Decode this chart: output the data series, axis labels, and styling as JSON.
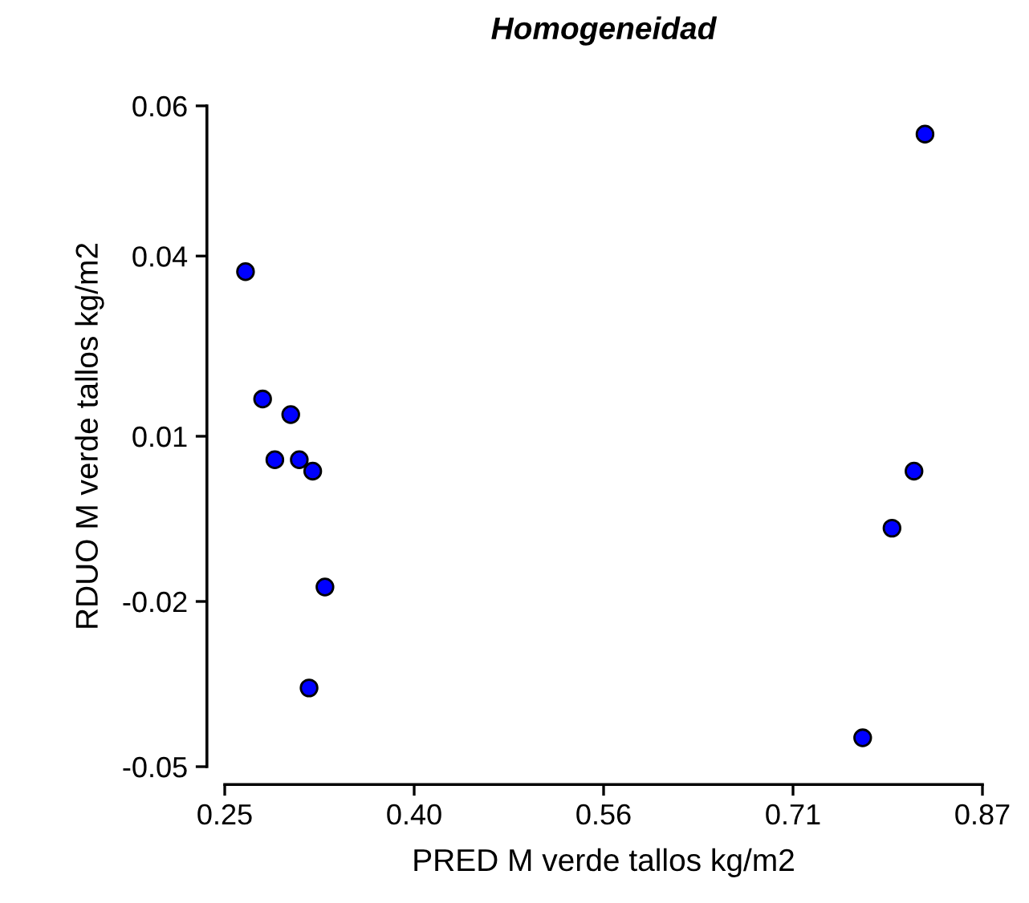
{
  "chart_data": {
    "type": "scatter",
    "title": "Homogeneidad",
    "xlabel": "PRED M verde tallos kg/m2",
    "ylabel": "RDUO M verde tallos kg/m2",
    "x": [
      0.267,
      0.281,
      0.304,
      0.291,
      0.311,
      0.322,
      0.332,
      0.319,
      0.772,
      0.796,
      0.814,
      0.823
    ],
    "series": [
      {
        "color": "#0000ff",
        "values": [
          0.0324,
          0.0112,
          0.0086,
          0.0011,
          0.0011,
          -0.0008,
          -0.0201,
          -0.0369,
          -0.0452,
          -0.0103,
          -0.0008,
          0.0553
        ]
      }
    ],
    "xlim": [
      0.25,
      0.87
    ],
    "ylim": [
      -0.05,
      0.06
    ],
    "xticks": [
      {
        "value": 0.25,
        "label": "0.25"
      },
      {
        "value": 0.405,
        "label": "0.40"
      },
      {
        "value": 0.56,
        "label": "0.56"
      },
      {
        "value": 0.715,
        "label": "0.71"
      },
      {
        "value": 0.87,
        "label": "0.87"
      }
    ],
    "yticks": [
      {
        "value": -0.05,
        "label": "-0.05"
      },
      {
        "value": -0.0225,
        "label": "-0.02"
      },
      {
        "value": 0.005,
        "label": "0.01"
      },
      {
        "value": 0.035,
        "label": "0.04"
      },
      {
        "value": 0.06,
        "label": "0.06"
      }
    ],
    "marker": "circle",
    "grid": false,
    "legend": false
  }
}
